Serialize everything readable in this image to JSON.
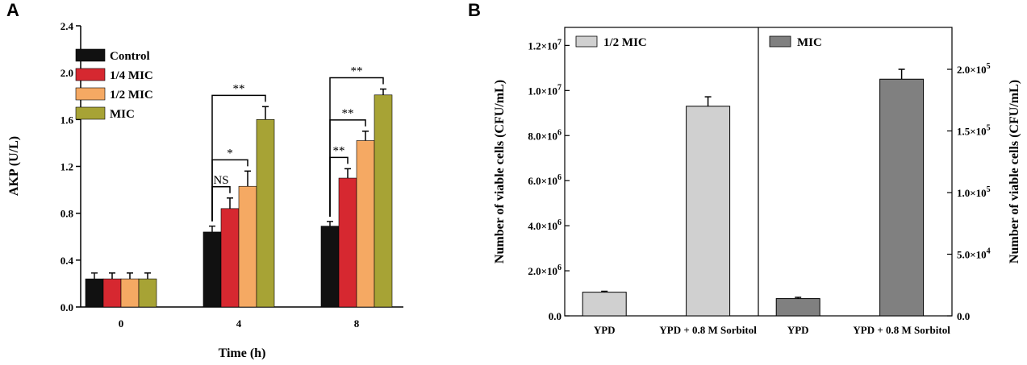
{
  "chart_data": [
    {
      "panel": "A",
      "type": "bar",
      "title": "",
      "xlabel": "Time (h)",
      "ylabel": "AKP (U/L)",
      "ylim": [
        0,
        2.4
      ],
      "yticks": [
        "0.0",
        "0.4",
        "0.8",
        "1.2",
        "1.6",
        "2.0",
        "2.4"
      ],
      "categories": [
        "0",
        "4",
        "8"
      ],
      "series": [
        {
          "name": "Control",
          "color": "#111111",
          "values": [
            0.24,
            0.64,
            0.69
          ],
          "errors": [
            0.05,
            0.05,
            0.04
          ]
        },
        {
          "name": "1/4 MIC",
          "color": "#d62830",
          "values": [
            0.24,
            0.84,
            1.1
          ],
          "errors": [
            0.05,
            0.09,
            0.08
          ]
        },
        {
          "name": "1/2 MIC",
          "color": "#f5a963",
          "values": [
            0.24,
            1.03,
            1.42
          ],
          "errors": [
            0.05,
            0.13,
            0.08
          ]
        },
        {
          "name": "MIC",
          "color": "#a7a335",
          "values": [
            0.24,
            1.6,
            1.81
          ],
          "errors": [
            0.05,
            0.11,
            0.05
          ]
        }
      ],
      "legend_position": "top-left",
      "annotations": [
        {
          "category": "4",
          "from": "Control",
          "to": "1/4 MIC",
          "label": "NS"
        },
        {
          "category": "4",
          "from": "Control",
          "to": "1/2 MIC",
          "label": "*"
        },
        {
          "category": "4",
          "from": "Control",
          "to": "MIC",
          "label": "**"
        },
        {
          "category": "8",
          "from": "Control",
          "to": "1/4 MIC",
          "label": "**"
        },
        {
          "category": "8",
          "from": "Control",
          "to": "1/2 MIC",
          "label": "**"
        },
        {
          "category": "8",
          "from": "Control",
          "to": "MIC",
          "label": "**"
        }
      ]
    },
    {
      "panel": "B",
      "type": "bar",
      "ylabel_left": "Number of viable cells (CFU/mL)",
      "ylabel_right": "Number of viable cells (CFU/mL)",
      "left": {
        "legend": "1/2 MIC",
        "color": "#d0d0d0",
        "categories": [
          "YPD",
          "YPD + 0.8 M Sorbitol"
        ],
        "values": [
          1050000,
          9300000
        ],
        "errors": [
          40000,
          420000
        ],
        "ylim": [
          0,
          12800000
        ],
        "ytick_values": [
          0,
          2000000,
          4000000,
          6000000,
          8000000,
          10000000,
          12000000
        ],
        "ytick_labels": [
          {
            "base": "0.0",
            "exp": ""
          },
          {
            "base": "2.0×10",
            "exp": "6"
          },
          {
            "base": "4.0×10",
            "exp": "6"
          },
          {
            "base": "6.0×10",
            "exp": "6"
          },
          {
            "base": "8.0×10",
            "exp": "6"
          },
          {
            "base": "1.0×10",
            "exp": "7"
          },
          {
            "base": "1.2×10",
            "exp": "7"
          }
        ]
      },
      "right": {
        "legend": "MIC",
        "color": "#808080",
        "categories": [
          "YPD",
          "YPD + 0.8 M Sorbitol"
        ],
        "values": [
          14000,
          192000
        ],
        "errors": [
          1000,
          8000
        ],
        "ylim": [
          0,
          234000
        ],
        "ytick_values": [
          0,
          50000,
          100000,
          150000,
          200000
        ],
        "ytick_labels": [
          {
            "base": "0.0",
            "exp": ""
          },
          {
            "base": "5.0×10",
            "exp": "4"
          },
          {
            "base": "1.0×10",
            "exp": "5"
          },
          {
            "base": "1.5×10",
            "exp": "5"
          },
          {
            "base": "2.0×10",
            "exp": "5"
          }
        ]
      }
    }
  ]
}
